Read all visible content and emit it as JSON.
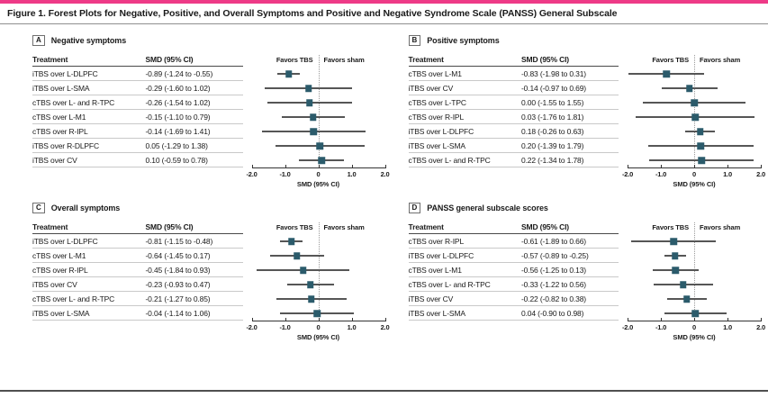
{
  "figure_title": "Figure 1. Forest Plots for Negative, Positive, and Overall Symptoms and Positive and Negative Syndrome Scale (PANSS) General Subscale",
  "colors": {
    "accent_bar": "#ee3a87",
    "marker": "#2b5b6b",
    "ci_line": "#565656"
  },
  "labels": {
    "treatment_header": "Treatment",
    "smd_header": "SMD (95% CI)",
    "favors_left": "Favors TBS",
    "favors_right": "Favors sham",
    "axis_label": "SMD (95% CI)"
  },
  "axis": {
    "min": -2.0,
    "max": 2.0,
    "ticks": [
      "-2.0",
      "-1.0",
      "0",
      "1.0",
      "2.0"
    ]
  },
  "panels": [
    {
      "letter": "A",
      "title": "Negative symptoms",
      "rows": [
        {
          "treatment": "iTBS over L-DLPFC",
          "smd": "-0.89 (-1.24 to -0.55)",
          "value": -0.89,
          "low": -1.24,
          "high": -0.55
        },
        {
          "treatment": "iTBS over L-SMA",
          "smd": "-0.29 (-1.60 to 1.02)",
          "value": -0.29,
          "low": -1.6,
          "high": 1.02
        },
        {
          "treatment": "cTBS over L- and R-TPC",
          "smd": "-0.26 (-1.54 to 1.02)",
          "value": -0.26,
          "low": -1.54,
          "high": 1.02
        },
        {
          "treatment": "cTBS over L-M1",
          "smd": "-0.15 (-1.10 to 0.79)",
          "value": -0.15,
          "low": -1.1,
          "high": 0.79
        },
        {
          "treatment": "cTBS over R-IPL",
          "smd": "-0.14 (-1.69 to 1.41)",
          "value": -0.14,
          "low": -1.69,
          "high": 1.41
        },
        {
          "treatment": "iTBS over R-DLPFC",
          "smd": "0.05 (-1.29 to 1.38)",
          "value": 0.05,
          "low": -1.29,
          "high": 1.38
        },
        {
          "treatment": "iTBS over CV",
          "smd": "0.10 (-0.59 to 0.78)",
          "value": 0.1,
          "low": -0.59,
          "high": 0.78
        }
      ]
    },
    {
      "letter": "B",
      "title": "Positive symptoms",
      "rows": [
        {
          "treatment": "cTBS over L-M1",
          "smd": "-0.83 (-1.98 to 0.31)",
          "value": -0.83,
          "low": -1.98,
          "high": 0.31
        },
        {
          "treatment": "iTBS over CV",
          "smd": "-0.14 (-0.97 to 0.69)",
          "value": -0.14,
          "low": -0.97,
          "high": 0.69
        },
        {
          "treatment": "cTBS over L-TPC",
          "smd": "0.00 (-1.55 to 1.55)",
          "value": 0.0,
          "low": -1.55,
          "high": 1.55
        },
        {
          "treatment": "cTBS over R-IPL",
          "smd": "0.03 (-1.76 to 1.81)",
          "value": 0.03,
          "low": -1.76,
          "high": 1.81
        },
        {
          "treatment": "iTBS over L-DLPFC",
          "smd": "0.18 (-0.26 to 0.63)",
          "value": 0.18,
          "low": -0.26,
          "high": 0.63
        },
        {
          "treatment": "iTBS over L-SMA",
          "smd": "0.20 (-1.39 to 1.79)",
          "value": 0.2,
          "low": -1.39,
          "high": 1.79
        },
        {
          "treatment": "cTBS over L- and R-TPC",
          "smd": "0.22 (-1.34 to 1.78)",
          "value": 0.22,
          "low": -1.34,
          "high": 1.78
        }
      ]
    },
    {
      "letter": "C",
      "title": "Overall symptoms",
      "rows": [
        {
          "treatment": "iTBS over L-DLPFC",
          "smd": "-0.81 (-1.15 to -0.48)",
          "value": -0.81,
          "low": -1.15,
          "high": -0.48
        },
        {
          "treatment": "cTBS over L-M1",
          "smd": "-0.64 (-1.45 to 0.17)",
          "value": -0.64,
          "low": -1.45,
          "high": 0.17
        },
        {
          "treatment": "cTBS over R-IPL",
          "smd": "-0.45 (-1.84 to 0.93)",
          "value": -0.45,
          "low": -1.84,
          "high": 0.93
        },
        {
          "treatment": "iTBS over CV",
          "smd": "-0.23 (-0.93 to 0.47)",
          "value": -0.23,
          "low": -0.93,
          "high": 0.47
        },
        {
          "treatment": "cTBS over L- and R-TPC",
          "smd": "-0.21 (-1.27 to 0.85)",
          "value": -0.21,
          "low": -1.27,
          "high": 0.85
        },
        {
          "treatment": "iTBS over L-SMA",
          "smd": "-0.04 (-1.14 to 1.06)",
          "value": -0.04,
          "low": -1.14,
          "high": 1.06
        }
      ]
    },
    {
      "letter": "D",
      "title": "PANSS general subscale scores",
      "rows": [
        {
          "treatment": "cTBS over R-IPL",
          "smd": "-0.61 (-1.89 to 0.66)",
          "value": -0.61,
          "low": -1.89,
          "high": 0.66
        },
        {
          "treatment": "iTBS over L-DLPFC",
          "smd": "-0.57 (-0.89 to -0.25)",
          "value": -0.57,
          "low": -0.89,
          "high": -0.25
        },
        {
          "treatment": "cTBS over L-M1",
          "smd": "-0.56 (-1.25 to 0.13)",
          "value": -0.56,
          "low": -1.25,
          "high": 0.13
        },
        {
          "treatment": "cTBS over L- and R-TPC",
          "smd": "-0.33 (-1.22 to 0.56)",
          "value": -0.33,
          "low": -1.22,
          "high": 0.56
        },
        {
          "treatment": "iTBS over CV",
          "smd": "-0.22 (-0.82 to 0.38)",
          "value": -0.22,
          "low": -0.82,
          "high": 0.38
        },
        {
          "treatment": "iTBS over L-SMA",
          "smd": "0.04 (-0.90 to 0.98)",
          "value": 0.04,
          "low": -0.9,
          "high": 0.98
        }
      ]
    }
  ],
  "chart_data": [
    {
      "type": "scatter",
      "subtype": "forest-plot",
      "title": "Negative symptoms",
      "xlabel": "SMD (95% CI)",
      "xlim": [
        -2.0,
        2.0
      ],
      "x_ticks": [
        -2.0,
        -1.0,
        0,
        1.0,
        2.0
      ],
      "zero_line": 0,
      "annotations": [
        "Favors TBS",
        "Favors sham"
      ],
      "series": [
        {
          "name": "iTBS over L-DLPFC",
          "estimate": -0.89,
          "ci_low": -1.24,
          "ci_high": -0.55
        },
        {
          "name": "iTBS over L-SMA",
          "estimate": -0.29,
          "ci_low": -1.6,
          "ci_high": 1.02
        },
        {
          "name": "cTBS over L- and R-TPC",
          "estimate": -0.26,
          "ci_low": -1.54,
          "ci_high": 1.02
        },
        {
          "name": "cTBS over L-M1",
          "estimate": -0.15,
          "ci_low": -1.1,
          "ci_high": 0.79
        },
        {
          "name": "cTBS over R-IPL",
          "estimate": -0.14,
          "ci_low": -1.69,
          "ci_high": 1.41
        },
        {
          "name": "iTBS over R-DLPFC",
          "estimate": 0.05,
          "ci_low": -1.29,
          "ci_high": 1.38
        },
        {
          "name": "iTBS over CV",
          "estimate": 0.1,
          "ci_low": -0.59,
          "ci_high": 0.78
        }
      ]
    },
    {
      "type": "scatter",
      "subtype": "forest-plot",
      "title": "Positive symptoms",
      "xlabel": "SMD (95% CI)",
      "xlim": [
        -2.0,
        2.0
      ],
      "x_ticks": [
        -2.0,
        -1.0,
        0,
        1.0,
        2.0
      ],
      "zero_line": 0,
      "annotations": [
        "Favors TBS",
        "Favors sham"
      ],
      "series": [
        {
          "name": "cTBS over L-M1",
          "estimate": -0.83,
          "ci_low": -1.98,
          "ci_high": 0.31
        },
        {
          "name": "iTBS over CV",
          "estimate": -0.14,
          "ci_low": -0.97,
          "ci_high": 0.69
        },
        {
          "name": "cTBS over L-TPC",
          "estimate": 0.0,
          "ci_low": -1.55,
          "ci_high": 1.55
        },
        {
          "name": "cTBS over R-IPL",
          "estimate": 0.03,
          "ci_low": -1.76,
          "ci_high": 1.81
        },
        {
          "name": "iTBS over L-DLPFC",
          "estimate": 0.18,
          "ci_low": -0.26,
          "ci_high": 0.63
        },
        {
          "name": "iTBS over L-SMA",
          "estimate": 0.2,
          "ci_low": -1.39,
          "ci_high": 1.79
        },
        {
          "name": "cTBS over L- and R-TPC",
          "estimate": 0.22,
          "ci_low": -1.34,
          "ci_high": 1.78
        }
      ]
    },
    {
      "type": "scatter",
      "subtype": "forest-plot",
      "title": "Overall symptoms",
      "xlabel": "SMD (95% CI)",
      "xlim": [
        -2.0,
        2.0
      ],
      "x_ticks": [
        -2.0,
        -1.0,
        0,
        1.0,
        2.0
      ],
      "zero_line": 0,
      "annotations": [
        "Favors TBS",
        "Favors sham"
      ],
      "series": [
        {
          "name": "iTBS over L-DLPFC",
          "estimate": -0.81,
          "ci_low": -1.15,
          "ci_high": -0.48
        },
        {
          "name": "cTBS over L-M1",
          "estimate": -0.64,
          "ci_low": -1.45,
          "ci_high": 0.17
        },
        {
          "name": "cTBS over R-IPL",
          "estimate": -0.45,
          "ci_low": -1.84,
          "ci_high": 0.93
        },
        {
          "name": "iTBS over CV",
          "estimate": -0.23,
          "ci_low": -0.93,
          "ci_high": 0.47
        },
        {
          "name": "cTBS over L- and R-TPC",
          "estimate": -0.21,
          "ci_low": -1.27,
          "ci_high": 0.85
        },
        {
          "name": "iTBS over L-SMA",
          "estimate": -0.04,
          "ci_low": -1.14,
          "ci_high": 1.06
        }
      ]
    },
    {
      "type": "scatter",
      "subtype": "forest-plot",
      "title": "PANSS general subscale scores",
      "xlabel": "SMD (95% CI)",
      "xlim": [
        -2.0,
        2.0
      ],
      "x_ticks": [
        -2.0,
        -1.0,
        0,
        1.0,
        2.0
      ],
      "zero_line": 0,
      "annotations": [
        "Favors TBS",
        "Favors sham"
      ],
      "series": [
        {
          "name": "cTBS over R-IPL",
          "estimate": -0.61,
          "ci_low": -1.89,
          "ci_high": 0.66
        },
        {
          "name": "iTBS over L-DLPFC",
          "estimate": -0.57,
          "ci_low": -0.89,
          "ci_high": -0.25
        },
        {
          "name": "cTBS over L-M1",
          "estimate": -0.56,
          "ci_low": -1.25,
          "ci_high": 0.13
        },
        {
          "name": "cTBS over L- and R-TPC",
          "estimate": -0.33,
          "ci_low": -1.22,
          "ci_high": 0.56
        },
        {
          "name": "iTBS over CV",
          "estimate": -0.22,
          "ci_low": -0.82,
          "ci_high": 0.38
        },
        {
          "name": "iTBS over L-SMA",
          "estimate": 0.04,
          "ci_low": -0.9,
          "ci_high": 0.98
        }
      ]
    }
  ]
}
